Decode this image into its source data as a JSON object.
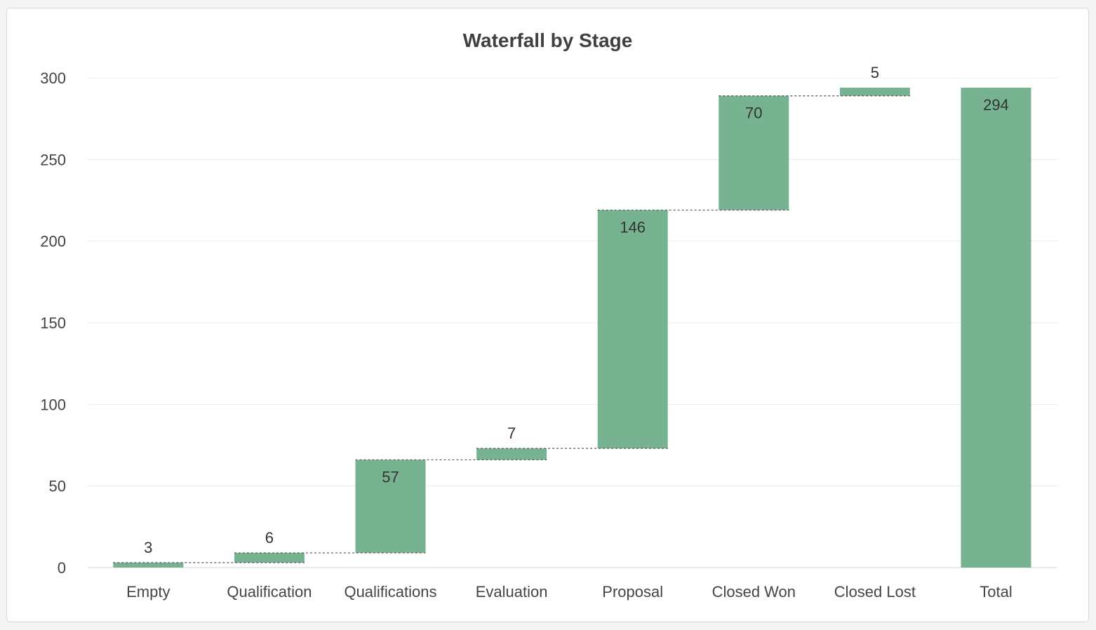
{
  "chart_data": {
    "type": "bar",
    "subtype": "waterfall",
    "title": "Waterfall by Stage",
    "xlabel": "",
    "ylabel": "",
    "ylim": [
      0,
      300
    ],
    "yticks": [
      0,
      50,
      100,
      150,
      200,
      250,
      300
    ],
    "grid": true,
    "legend": "none",
    "bar_color": "#77b391",
    "categories": [
      "Empty",
      "Qualification",
      "Qualifications",
      "Evaluation",
      "Proposal",
      "Closed Won",
      "Closed Lost",
      "Total"
    ],
    "values": [
      3,
      6,
      57,
      7,
      146,
      70,
      5,
      294
    ],
    "is_total": [
      false,
      false,
      false,
      false,
      false,
      false,
      false,
      true
    ],
    "data_labels": [
      "3",
      "6",
      "57",
      "7",
      "146",
      "70",
      "5",
      "294"
    ]
  }
}
